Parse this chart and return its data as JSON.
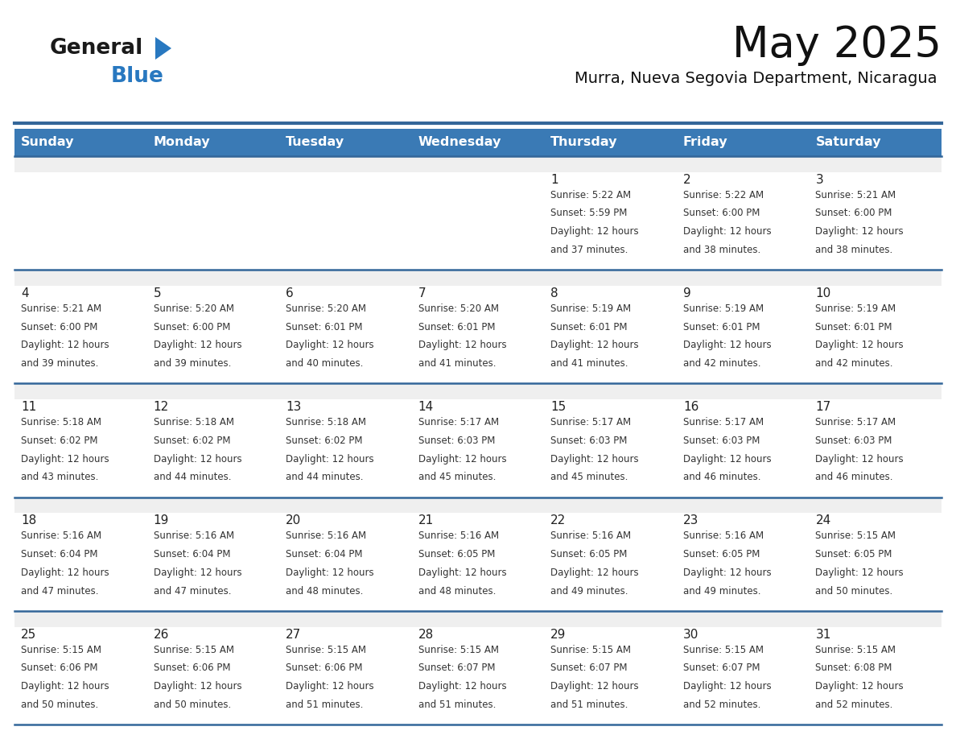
{
  "title": "May 2025",
  "subtitle": "Murra, Nueva Segovia Department, Nicaragua",
  "days_of_week": [
    "Sunday",
    "Monday",
    "Tuesday",
    "Wednesday",
    "Thursday",
    "Friday",
    "Saturday"
  ],
  "header_bg": "#3a7ab5",
  "header_text": "#ffffff",
  "row_bg_light": "#efefef",
  "row_bg_white": "#ffffff",
  "separator_color": "#336699",
  "day_number_color": "#222222",
  "cell_text_color": "#333333",
  "logo_general_color": "#1a1a1a",
  "logo_blue_color": "#2878c0",
  "calendar_data": [
    [
      null,
      null,
      null,
      null,
      {
        "day": 1,
        "sunrise": "5:22 AM",
        "sunset": "5:59 PM",
        "daylight_hrs": "12 hours",
        "daylight_min": "and 37 minutes."
      },
      {
        "day": 2,
        "sunrise": "5:22 AM",
        "sunset": "6:00 PM",
        "daylight_hrs": "12 hours",
        "daylight_min": "and 38 minutes."
      },
      {
        "day": 3,
        "sunrise": "5:21 AM",
        "sunset": "6:00 PM",
        "daylight_hrs": "12 hours",
        "daylight_min": "and 38 minutes."
      }
    ],
    [
      {
        "day": 4,
        "sunrise": "5:21 AM",
        "sunset": "6:00 PM",
        "daylight_hrs": "12 hours",
        "daylight_min": "and 39 minutes."
      },
      {
        "day": 5,
        "sunrise": "5:20 AM",
        "sunset": "6:00 PM",
        "daylight_hrs": "12 hours",
        "daylight_min": "and 39 minutes."
      },
      {
        "day": 6,
        "sunrise": "5:20 AM",
        "sunset": "6:01 PM",
        "daylight_hrs": "12 hours",
        "daylight_min": "and 40 minutes."
      },
      {
        "day": 7,
        "sunrise": "5:20 AM",
        "sunset": "6:01 PM",
        "daylight_hrs": "12 hours",
        "daylight_min": "and 41 minutes."
      },
      {
        "day": 8,
        "sunrise": "5:19 AM",
        "sunset": "6:01 PM",
        "daylight_hrs": "12 hours",
        "daylight_min": "and 41 minutes."
      },
      {
        "day": 9,
        "sunrise": "5:19 AM",
        "sunset": "6:01 PM",
        "daylight_hrs": "12 hours",
        "daylight_min": "and 42 minutes."
      },
      {
        "day": 10,
        "sunrise": "5:19 AM",
        "sunset": "6:01 PM",
        "daylight_hrs": "12 hours",
        "daylight_min": "and 42 minutes."
      }
    ],
    [
      {
        "day": 11,
        "sunrise": "5:18 AM",
        "sunset": "6:02 PM",
        "daylight_hrs": "12 hours",
        "daylight_min": "and 43 minutes."
      },
      {
        "day": 12,
        "sunrise": "5:18 AM",
        "sunset": "6:02 PM",
        "daylight_hrs": "12 hours",
        "daylight_min": "and 44 minutes."
      },
      {
        "day": 13,
        "sunrise": "5:18 AM",
        "sunset": "6:02 PM",
        "daylight_hrs": "12 hours",
        "daylight_min": "and 44 minutes."
      },
      {
        "day": 14,
        "sunrise": "5:17 AM",
        "sunset": "6:03 PM",
        "daylight_hrs": "12 hours",
        "daylight_min": "and 45 minutes."
      },
      {
        "day": 15,
        "sunrise": "5:17 AM",
        "sunset": "6:03 PM",
        "daylight_hrs": "12 hours",
        "daylight_min": "and 45 minutes."
      },
      {
        "day": 16,
        "sunrise": "5:17 AM",
        "sunset": "6:03 PM",
        "daylight_hrs": "12 hours",
        "daylight_min": "and 46 minutes."
      },
      {
        "day": 17,
        "sunrise": "5:17 AM",
        "sunset": "6:03 PM",
        "daylight_hrs": "12 hours",
        "daylight_min": "and 46 minutes."
      }
    ],
    [
      {
        "day": 18,
        "sunrise": "5:16 AM",
        "sunset": "6:04 PM",
        "daylight_hrs": "12 hours",
        "daylight_min": "and 47 minutes."
      },
      {
        "day": 19,
        "sunrise": "5:16 AM",
        "sunset": "6:04 PM",
        "daylight_hrs": "12 hours",
        "daylight_min": "and 47 minutes."
      },
      {
        "day": 20,
        "sunrise": "5:16 AM",
        "sunset": "6:04 PM",
        "daylight_hrs": "12 hours",
        "daylight_min": "and 48 minutes."
      },
      {
        "day": 21,
        "sunrise": "5:16 AM",
        "sunset": "6:05 PM",
        "daylight_hrs": "12 hours",
        "daylight_min": "and 48 minutes."
      },
      {
        "day": 22,
        "sunrise": "5:16 AM",
        "sunset": "6:05 PM",
        "daylight_hrs": "12 hours",
        "daylight_min": "and 49 minutes."
      },
      {
        "day": 23,
        "sunrise": "5:16 AM",
        "sunset": "6:05 PM",
        "daylight_hrs": "12 hours",
        "daylight_min": "and 49 minutes."
      },
      {
        "day": 24,
        "sunrise": "5:15 AM",
        "sunset": "6:05 PM",
        "daylight_hrs": "12 hours",
        "daylight_min": "and 50 minutes."
      }
    ],
    [
      {
        "day": 25,
        "sunrise": "5:15 AM",
        "sunset": "6:06 PM",
        "daylight_hrs": "12 hours",
        "daylight_min": "and 50 minutes."
      },
      {
        "day": 26,
        "sunrise": "5:15 AM",
        "sunset": "6:06 PM",
        "daylight_hrs": "12 hours",
        "daylight_min": "and 50 minutes."
      },
      {
        "day": 27,
        "sunrise": "5:15 AM",
        "sunset": "6:06 PM",
        "daylight_hrs": "12 hours",
        "daylight_min": "and 51 minutes."
      },
      {
        "day": 28,
        "sunrise": "5:15 AM",
        "sunset": "6:07 PM",
        "daylight_hrs": "12 hours",
        "daylight_min": "and 51 minutes."
      },
      {
        "day": 29,
        "sunrise": "5:15 AM",
        "sunset": "6:07 PM",
        "daylight_hrs": "12 hours",
        "daylight_min": "and 51 minutes."
      },
      {
        "day": 30,
        "sunrise": "5:15 AM",
        "sunset": "6:07 PM",
        "daylight_hrs": "12 hours",
        "daylight_min": "and 52 minutes."
      },
      {
        "day": 31,
        "sunrise": "5:15 AM",
        "sunset": "6:08 PM",
        "daylight_hrs": "12 hours",
        "daylight_min": "and 52 minutes."
      }
    ]
  ]
}
